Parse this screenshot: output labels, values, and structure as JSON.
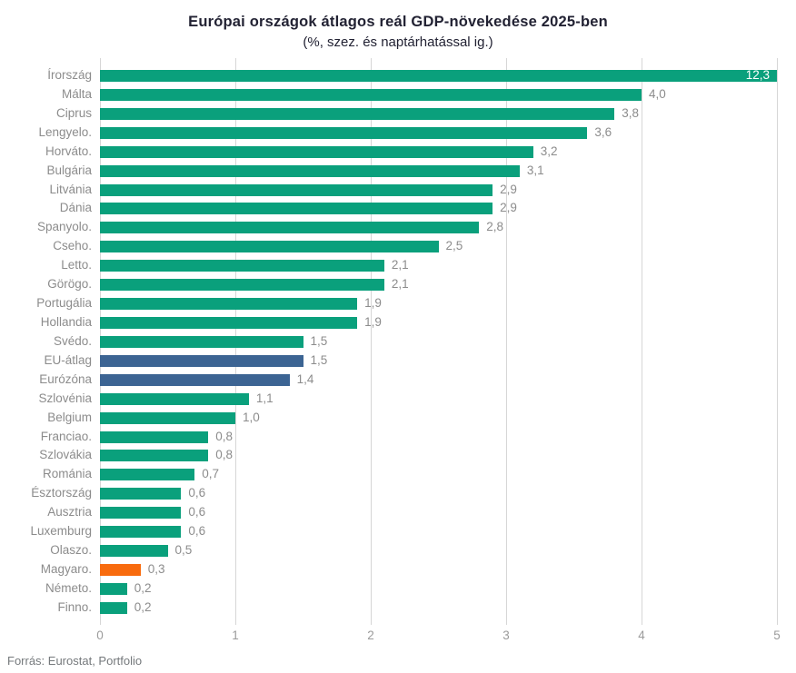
{
  "title": "Európai országok átlagos reál GDP-növekedése 2025-ben",
  "subtitle": "(%, szez. és naptárhatással ig.)",
  "source": "Forrás: Eurostat, Portfolio",
  "colors": {
    "country": "#0aa07c",
    "eu_aggregate": "#3c6493",
    "hungary": "#f86b0e",
    "grid": "#d6d6d6",
    "title_text": "#222233",
    "label_text": "#8c8c8c",
    "axis_text": "#9b9b9b",
    "inside_value_text": "#ffffff"
  },
  "chart_data": {
    "type": "bar",
    "orientation": "horizontal",
    "title": "Európai országok átlagos reál GDP-növekedése 2025-ben",
    "subtitle": "(%, szez. és naptárhatással ig.)",
    "xlabel": "",
    "ylabel": "",
    "xlim": [
      0,
      5
    ],
    "xticks": [
      0,
      1,
      2,
      3,
      4,
      5
    ],
    "xtick_labels": [
      "0",
      "1",
      "2",
      "3",
      "4",
      "5"
    ],
    "grid": true,
    "legend": false,
    "clip_note": "Írország bar (12,3) is clipped at x=5 with its value label drawn inside the bar in white",
    "categories": [
      "Írország",
      "Málta",
      "Ciprus",
      "Lengyelo.",
      "Horváto.",
      "Bulgária",
      "Litvánia",
      "Dánia",
      "Spanyolo.",
      "Cseho.",
      "Letto.",
      "Görögo.",
      "Portugália",
      "Hollandia",
      "Svédo.",
      "EU-átlag",
      "Eurózóna",
      "Szlovénia",
      "Belgium",
      "Franciao.",
      "Szlovákia",
      "Románia",
      "Észtország",
      "Ausztria",
      "Luxemburg",
      "Olaszo.",
      "Magyaro.",
      "Németo.",
      "Finno."
    ],
    "values": [
      12.3,
      4.0,
      3.8,
      3.6,
      3.2,
      3.1,
      2.9,
      2.9,
      2.8,
      2.5,
      2.1,
      2.1,
      1.9,
      1.9,
      1.5,
      1.5,
      1.4,
      1.1,
      1.0,
      0.8,
      0.8,
      0.7,
      0.6,
      0.6,
      0.6,
      0.5,
      0.3,
      0.2,
      0.2
    ],
    "value_labels": [
      "12,3",
      "4,0",
      "3,8",
      "3,6",
      "3,2",
      "3,1",
      "2,9",
      "2,9",
      "2,8",
      "2,5",
      "2,1",
      "2,1",
      "1,9",
      "1,9",
      "1,5",
      "1,5",
      "1,4",
      "1,1",
      "1,0",
      "0,8",
      "0,8",
      "0,7",
      "0,6",
      "0,6",
      "0,6",
      "0,5",
      "0,3",
      "0,2",
      "0,2"
    ],
    "bar_color_keys": [
      "country",
      "country",
      "country",
      "country",
      "country",
      "country",
      "country",
      "country",
      "country",
      "country",
      "country",
      "country",
      "country",
      "country",
      "country",
      "eu_aggregate",
      "eu_aggregate",
      "country",
      "country",
      "country",
      "country",
      "country",
      "country",
      "country",
      "country",
      "country",
      "hungary",
      "country",
      "country"
    ]
  }
}
